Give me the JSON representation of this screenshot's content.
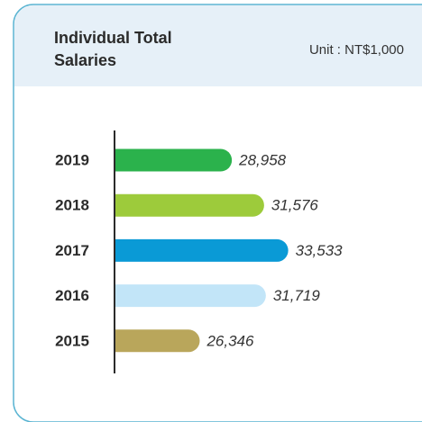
{
  "chart_data": {
    "type": "bar",
    "orientation": "horizontal",
    "title": "Individual Total Salaries",
    "subtitle": "Unit : NT$1,000",
    "categories": [
      "2019",
      "2018",
      "2017",
      "2016",
      "2015"
    ],
    "values": [
      28958,
      31576,
      33533,
      31719,
      26346
    ],
    "value_labels": [
      "28,958",
      "31,576",
      "33,533",
      "31,719",
      "26,346"
    ],
    "colors": [
      "#2bb24c",
      "#9dcb3b",
      "#0a9ad6",
      "#c2e5f8",
      "#b9a65b"
    ],
    "xlim": [
      19500,
      34000
    ]
  }
}
